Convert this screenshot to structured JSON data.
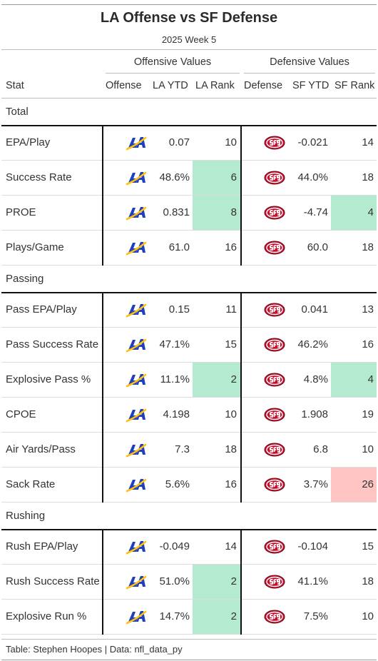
{
  "title": "LA Offense vs SF Defense",
  "subtitle": "2025 Week 5",
  "spanners": {
    "offense": "Offensive Values",
    "defense": "Defensive Values"
  },
  "columns": {
    "stat": "Stat",
    "offense": "Offense",
    "la_ytd": "LA YTD",
    "la_rank": "LA Rank",
    "defense": "Defense",
    "sf_ytd": "SF YTD",
    "sf_rank": "SF Rank"
  },
  "logos": {
    "offense_icon": "rams-logo-icon",
    "defense_icon": "49ers-logo-icon"
  },
  "colors": {
    "good_rank": "#b3ead0",
    "bad_rank": "#ffc4c4",
    "rams_blue": "#1f3fbf",
    "rams_gold": "#ffc20e",
    "niners_red": "#c8102e"
  },
  "chart_data": {
    "type": "table",
    "groups": [
      {
        "name": "Total",
        "rows": [
          {
            "stat": "EPA/Play",
            "la_ytd": "0.07",
            "la_rank": "10",
            "sf_ytd": "-0.021",
            "sf_rank": "14",
            "la_hl": "",
            "sf_hl": ""
          },
          {
            "stat": "Success Rate",
            "la_ytd": "48.6%",
            "la_rank": "6",
            "sf_ytd": "44.0%",
            "sf_rank": "18",
            "la_hl": "good",
            "sf_hl": ""
          },
          {
            "stat": "PROE",
            "la_ytd": "0.831",
            "la_rank": "8",
            "sf_ytd": "-4.74",
            "sf_rank": "4",
            "la_hl": "good",
            "sf_hl": "good"
          },
          {
            "stat": "Plays/Game",
            "la_ytd": "61.0",
            "la_rank": "16",
            "sf_ytd": "60.0",
            "sf_rank": "18",
            "la_hl": "",
            "sf_hl": ""
          }
        ]
      },
      {
        "name": "Passing",
        "rows": [
          {
            "stat": "Pass EPA/Play",
            "la_ytd": "0.15",
            "la_rank": "11",
            "sf_ytd": "0.041",
            "sf_rank": "13",
            "la_hl": "",
            "sf_hl": ""
          },
          {
            "stat": "Pass Success Rate",
            "la_ytd": "47.1%",
            "la_rank": "15",
            "sf_ytd": "46.2%",
            "sf_rank": "16",
            "la_hl": "",
            "sf_hl": ""
          },
          {
            "stat": "Explosive Pass %",
            "la_ytd": "11.1%",
            "la_rank": "2",
            "sf_ytd": "4.8%",
            "sf_rank": "4",
            "la_hl": "good",
            "sf_hl": "good"
          },
          {
            "stat": "CPOE",
            "la_ytd": "4.198",
            "la_rank": "10",
            "sf_ytd": "1.908",
            "sf_rank": "19",
            "la_hl": "",
            "sf_hl": ""
          },
          {
            "stat": "Air Yards/Pass",
            "la_ytd": "7.3",
            "la_rank": "18",
            "sf_ytd": "6.8",
            "sf_rank": "10",
            "la_hl": "",
            "sf_hl": ""
          },
          {
            "stat": "Sack Rate",
            "la_ytd": "5.6%",
            "la_rank": "16",
            "sf_ytd": "3.7%",
            "sf_rank": "26",
            "la_hl": "",
            "sf_hl": "bad"
          }
        ]
      },
      {
        "name": "Rushing",
        "rows": [
          {
            "stat": "Rush EPA/Play",
            "la_ytd": "-0.049",
            "la_rank": "14",
            "sf_ytd": "-0.104",
            "sf_rank": "15",
            "la_hl": "",
            "sf_hl": ""
          },
          {
            "stat": "Rush Success Rate",
            "la_ytd": "51.0%",
            "la_rank": "2",
            "sf_ytd": "41.1%",
            "sf_rank": "18",
            "la_hl": "good",
            "sf_hl": ""
          },
          {
            "stat": "Explosive Run %",
            "la_ytd": "14.7%",
            "la_rank": "2",
            "sf_ytd": "7.5%",
            "sf_rank": "10",
            "la_hl": "good",
            "sf_hl": ""
          }
        ]
      }
    ]
  },
  "footer": "Table: Stephen Hoopes | Data: nfl_data_py"
}
